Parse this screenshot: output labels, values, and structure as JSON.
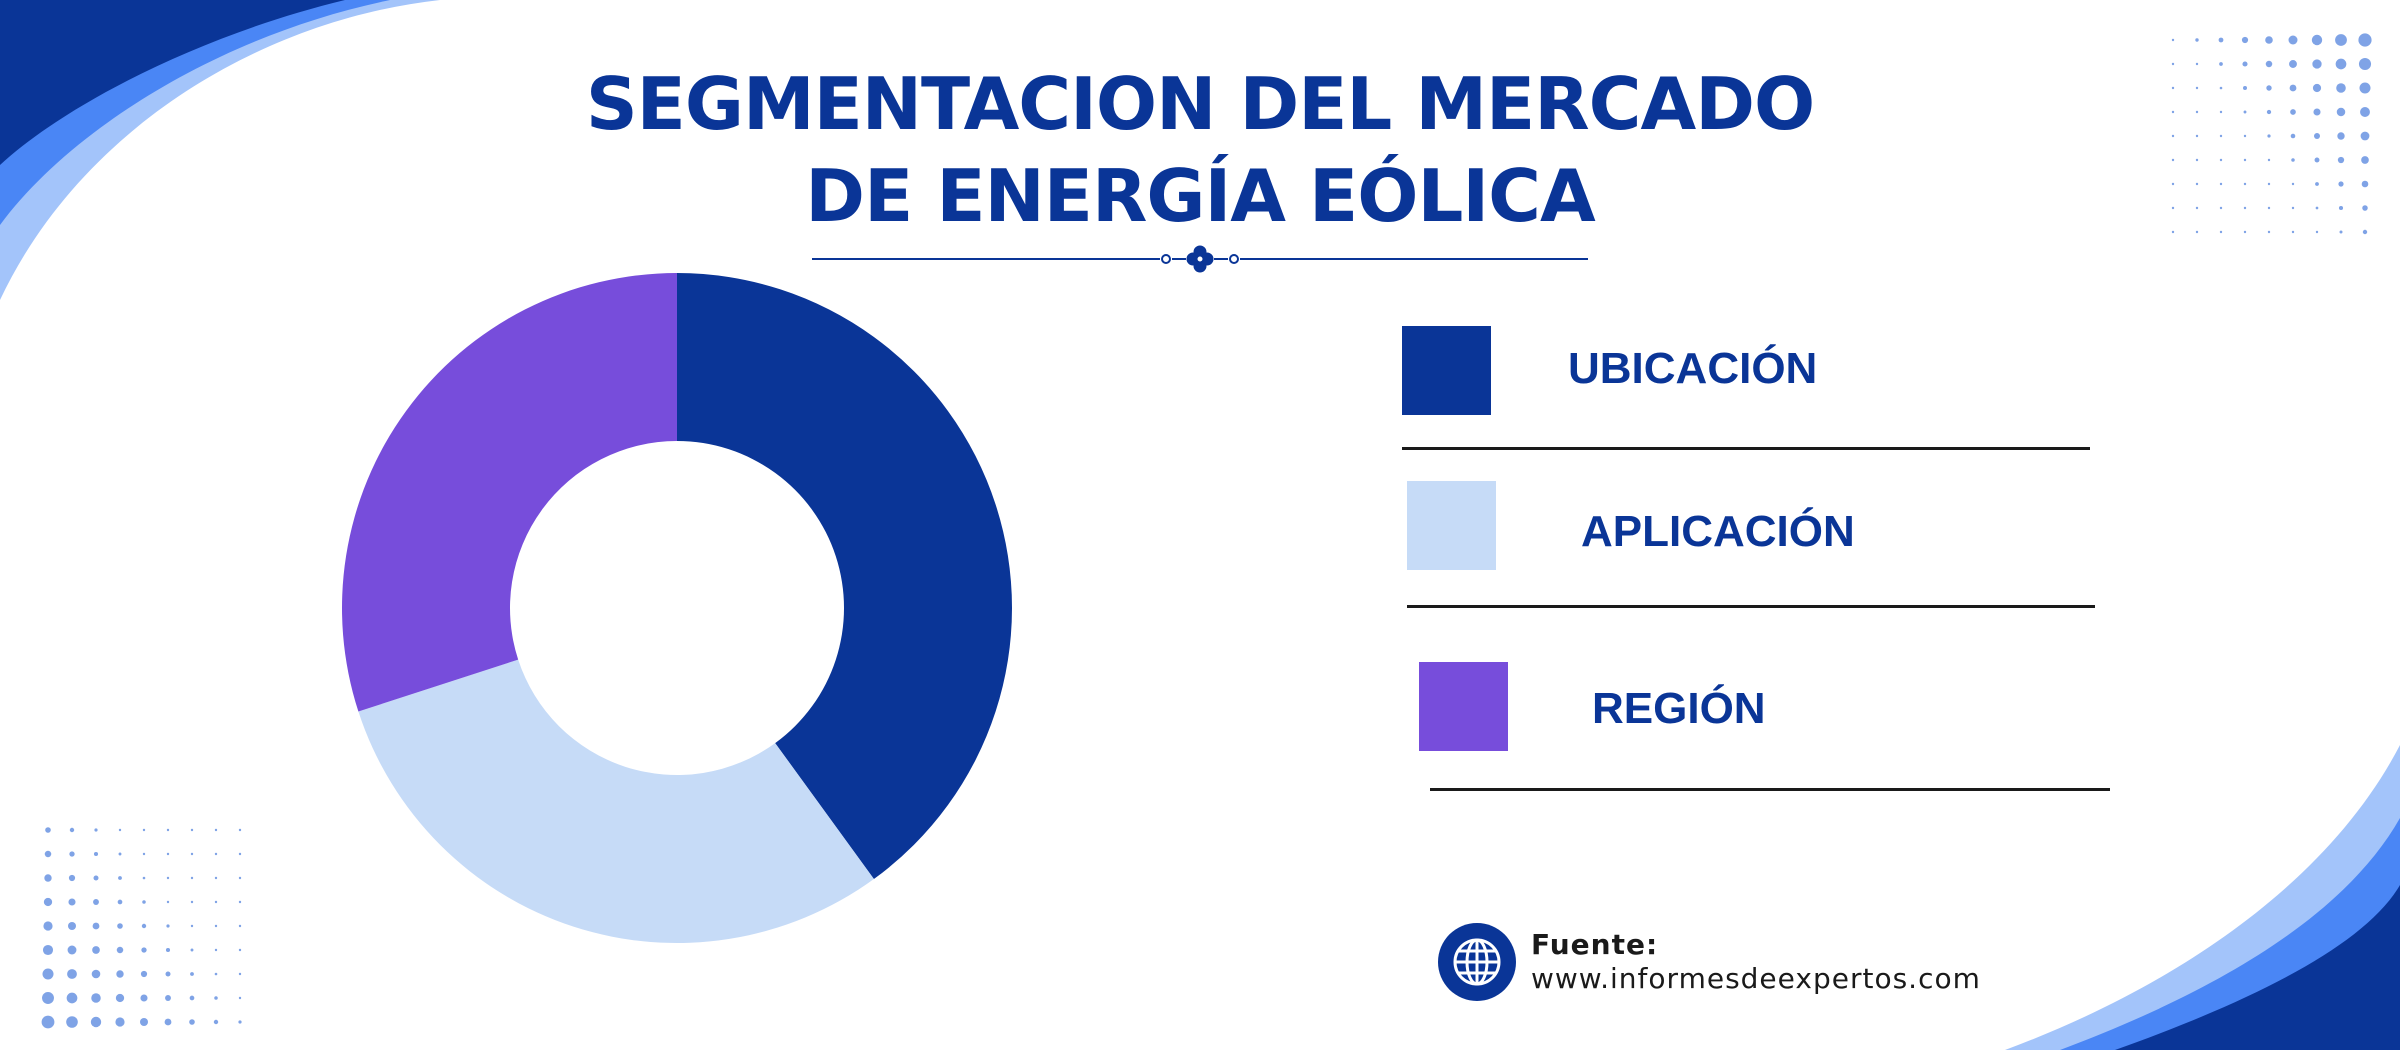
{
  "header": {
    "title_line1": "SEGMENTACION DEL MERCADO",
    "title_line2": "DE ENERGÍA EÓLICA"
  },
  "chart_data": {
    "type": "pie",
    "style": "donut",
    "categories": [
      "UBICACIÓN",
      "APLICACIÓN",
      "REGIÓN"
    ],
    "values": [
      40,
      30,
      30
    ],
    "unit": "%",
    "colors": [
      "#0a3597",
      "#c6dbf7",
      "#774ddb"
    ],
    "legend": "right",
    "title": "SEGMENTACION DEL MERCADO DE ENERGÍA EÓLICA"
  },
  "source": {
    "label": "Fuente:",
    "url": "www.informesdeexpertos.com",
    "icon": "globe-icon"
  },
  "theme": {
    "primary": "#0a3597",
    "accent_blue": "#4a86f5",
    "light_blue": "#a3c4fa",
    "dot_color": "#7fa3e6"
  }
}
